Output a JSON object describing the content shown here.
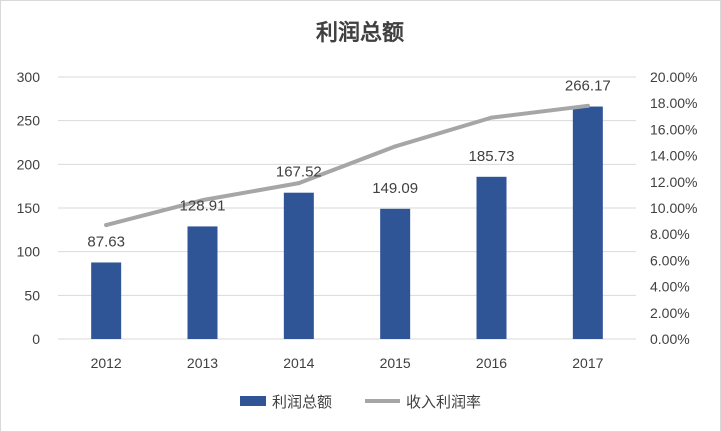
{
  "chart_data": {
    "type": "bar",
    "title": "利润总额",
    "categories": [
      "2012",
      "2013",
      "2014",
      "2015",
      "2016",
      "2017"
    ],
    "series": [
      {
        "name": "利润总额",
        "type": "bar",
        "axis": "left",
        "color": "#2f5597",
        "values": [
          87.63,
          128.91,
          167.52,
          149.09,
          185.73,
          266.17
        ],
        "data_labels": [
          "87.63",
          "128.91",
          "167.52",
          "149.09",
          "185.73",
          "266.17"
        ]
      },
      {
        "name": "收入利润率",
        "type": "line",
        "axis": "right",
        "color": "#a6a6a6",
        "values": [
          8.7,
          10.6,
          11.9,
          14.7,
          16.9,
          17.8
        ]
      }
    ],
    "y_left": {
      "ylim": [
        0,
        300
      ],
      "ticks": [
        "0",
        "50",
        "100",
        "150",
        "200",
        "250",
        "300"
      ]
    },
    "y_right": {
      "ylim": [
        0,
        20
      ],
      "ticks": [
        "0.00%",
        "2.00%",
        "4.00%",
        "6.00%",
        "8.00%",
        "10.00%",
        "12.00%",
        "14.00%",
        "16.00%",
        "18.00%",
        "20.00%"
      ]
    },
    "grid": true,
    "legend": "bottom"
  }
}
